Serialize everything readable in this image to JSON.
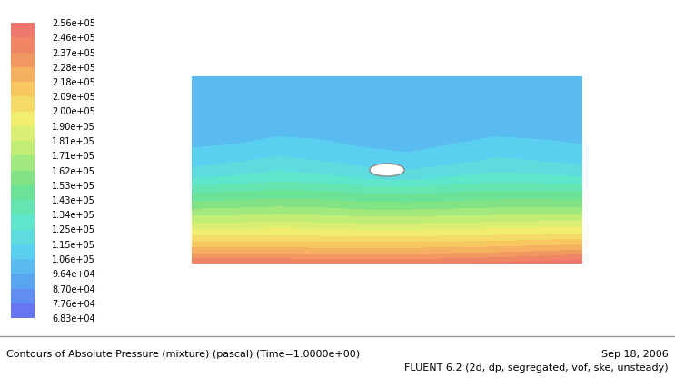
{
  "chart_data": {
    "type": "contour",
    "title": "Contours of Absolute Pressure (mixture) (pascal) (Time=1.0000e+00)",
    "annotations": [
      "Sep 18, 2006",
      "FLUENT 6.2 (2d, dp, segregated, vof, ske, unsteady)"
    ],
    "tick_labels": false,
    "cells": [
      [
        101000,
        101000,
        101000,
        101000,
        101000,
        101000,
        101000,
        101000,
        101000,
        101000
      ],
      [
        101500,
        101500,
        101500,
        101500,
        101500,
        101500,
        101500,
        101500,
        101500,
        101500
      ],
      [
        102000,
        102000,
        102000,
        102000,
        102000,
        102000,
        102000,
        102000,
        102000,
        102000
      ],
      [
        103000,
        103000,
        103500,
        103500,
        103000,
        103000,
        103000,
        103500,
        103500,
        103000
      ],
      [
        105000,
        106000,
        108000,
        107000,
        105000,
        104000,
        106000,
        108000,
        107000,
        106000
      ],
      [
        110000,
        114000,
        118000,
        115000,
        110000,
        108000,
        112000,
        117000,
        115000,
        112000
      ],
      [
        124000,
        127000,
        130000,
        128000,
        124000,
        122000,
        126000,
        129000,
        128000,
        126000
      ],
      [
        145000,
        147000,
        149000,
        148000,
        145000,
        144000,
        146000,
        148000,
        148000,
        147000
      ],
      [
        166000,
        167000,
        168000,
        167000,
        165000,
        165000,
        166000,
        167000,
        168000,
        168000
      ],
      [
        190000,
        190000,
        191000,
        190000,
        189000,
        189000,
        190000,
        191000,
        192000,
        193000
      ],
      [
        216000,
        216000,
        216000,
        215000,
        215000,
        215000,
        216000,
        217000,
        219000,
        221000
      ],
      [
        245000,
        245000,
        245000,
        244000,
        244000,
        244000,
        245000,
        247000,
        250000,
        254000
      ]
    ],
    "colorbar": {
      "range": [
        68300,
        256000
      ],
      "ticks": [
        {
          "value": 68300,
          "label": "6.83e+04"
        },
        {
          "value": 77600,
          "label": "7.76e+04"
        },
        {
          "value": 87000,
          "label": "8.70e+04"
        },
        {
          "value": 96400,
          "label": "9.64e+04"
        },
        {
          "value": 106000,
          "label": "1.06e+05"
        },
        {
          "value": 115000,
          "label": "1.15e+05"
        },
        {
          "value": 125000,
          "label": "1.25e+05"
        },
        {
          "value": 134000,
          "label": "1.34e+05"
        },
        {
          "value": 143000,
          "label": "1.43e+05"
        },
        {
          "value": 153000,
          "label": "1.53e+05"
        },
        {
          "value": 162000,
          "label": "1.62e+05"
        },
        {
          "value": 171000,
          "label": "1.71e+05"
        },
        {
          "value": 181000,
          "label": "1.81e+05"
        },
        {
          "value": 190000,
          "label": "1.90e+05"
        },
        {
          "value": 200000,
          "label": "2.00e+05"
        },
        {
          "value": 209000,
          "label": "2.09e+05"
        },
        {
          "value": 218000,
          "label": "2.18e+05"
        },
        {
          "value": 228000,
          "label": "2.28e+05"
        },
        {
          "value": 237000,
          "label": "2.37e+05"
        },
        {
          "value": 246000,
          "label": "2.46e+05"
        },
        {
          "value": 256000,
          "label": "2.56e+05"
        }
      ]
    }
  }
}
